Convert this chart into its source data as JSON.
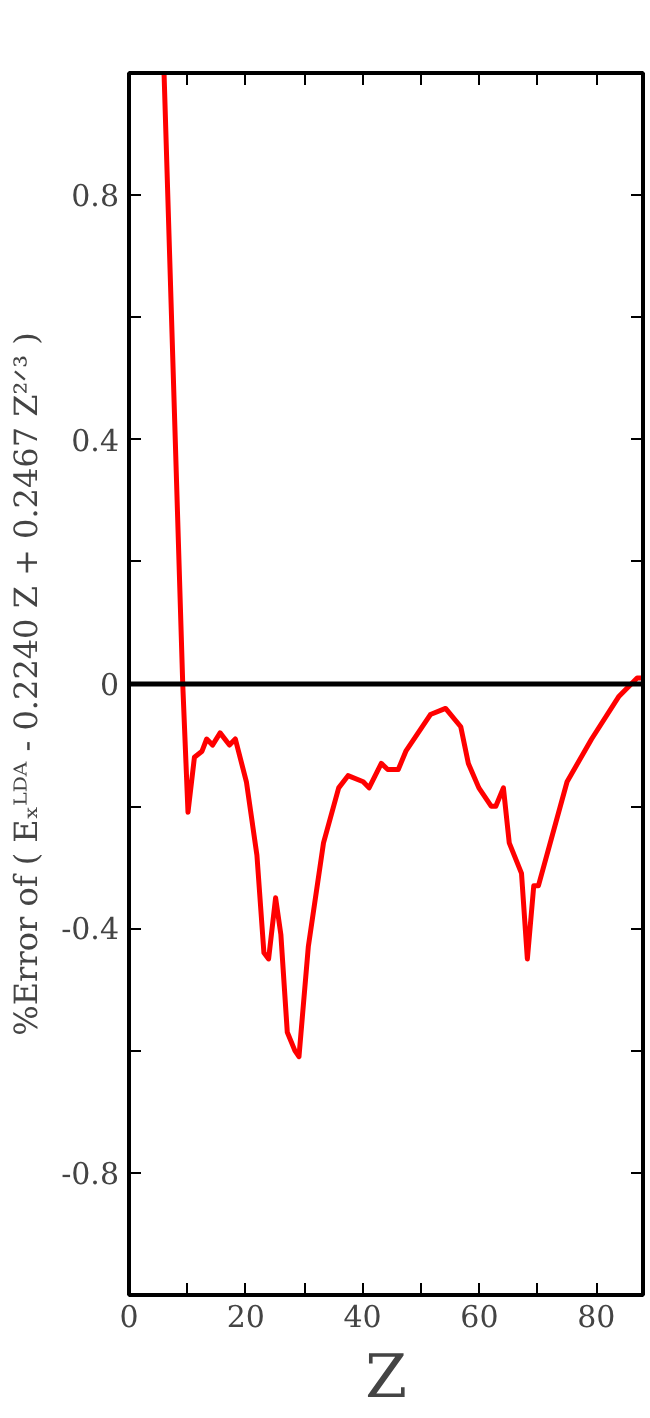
{
  "chart_data": {
    "type": "line",
    "xlabel": "Z",
    "ylabel": "%Error of ( Eₓᴸᴰᴬ - 0.2240 Z + 0.2467 Z²ᐟ³ )",
    "xlim": [
      0,
      88
    ],
    "ylim": [
      -1,
      1
    ],
    "xticks": [
      0,
      {
        "value": 10,
        "label": null
      },
      20,
      {
        "value": 30,
        "label": null
      },
      40,
      {
        "value": 50,
        "label": null
      },
      60,
      {
        "value": 70,
        "label": null
      },
      80
    ],
    "yticks": [
      -0.8,
      {
        "value": -0.6,
        "label": null
      },
      -0.4,
      {
        "value": -0.2,
        "label": null
      },
      0,
      {
        "value": 0.2,
        "label": null
      },
      0.4,
      {
        "value": 0.6,
        "label": null
      },
      0.8
    ],
    "grid": false,
    "marker": "none",
    "line_style": "solid",
    "ref_lines": [
      {
        "axis": "y",
        "value": 0,
        "color": "#000000"
      }
    ],
    "series": [
      {
        "color": "#ff0000",
        "x": [
          6,
          9.2,
          10.1,
          11.2,
          12.5,
          13.3,
          14.3,
          15.6,
          17.2,
          18.2,
          20.1,
          21.9,
          23.1,
          23.9,
          25.1,
          26.0,
          27.1,
          28.4,
          29.1,
          30.7,
          33.3,
          35.9,
          37.5,
          40.1,
          41.1,
          43.2,
          44.3,
          46.1,
          47.4,
          51.6,
          54.2,
          56.8,
          58.1,
          59.9,
          62.0,
          62.8,
          64.1,
          65.1,
          67.2,
          68.2,
          69.3,
          70.1,
          75.0,
          79.2,
          83.9,
          87.0,
          87.8
        ],
        "values": [
          1.0,
          0,
          -0.21,
          -0.12,
          -0.11,
          -0.09,
          -0.1,
          -0.08,
          -0.1,
          -0.09,
          -0.16,
          -0.28,
          -0.44,
          -0.45,
          -0.35,
          -0.41,
          -0.57,
          -0.6,
          -0.61,
          -0.43,
          -0.26,
          -0.17,
          -0.15,
          -0.16,
          -0.17,
          -0.13,
          -0.14,
          -0.14,
          -0.11,
          -0.05,
          -0.04,
          -0.07,
          -0.13,
          -0.17,
          -0.2,
          -0.2,
          -0.17,
          -0.26,
          -0.31,
          -0.45,
          -0.33,
          -0.33,
          -0.16,
          -0.09,
          -0.02,
          0.01,
          0.01
        ]
      }
    ]
  }
}
